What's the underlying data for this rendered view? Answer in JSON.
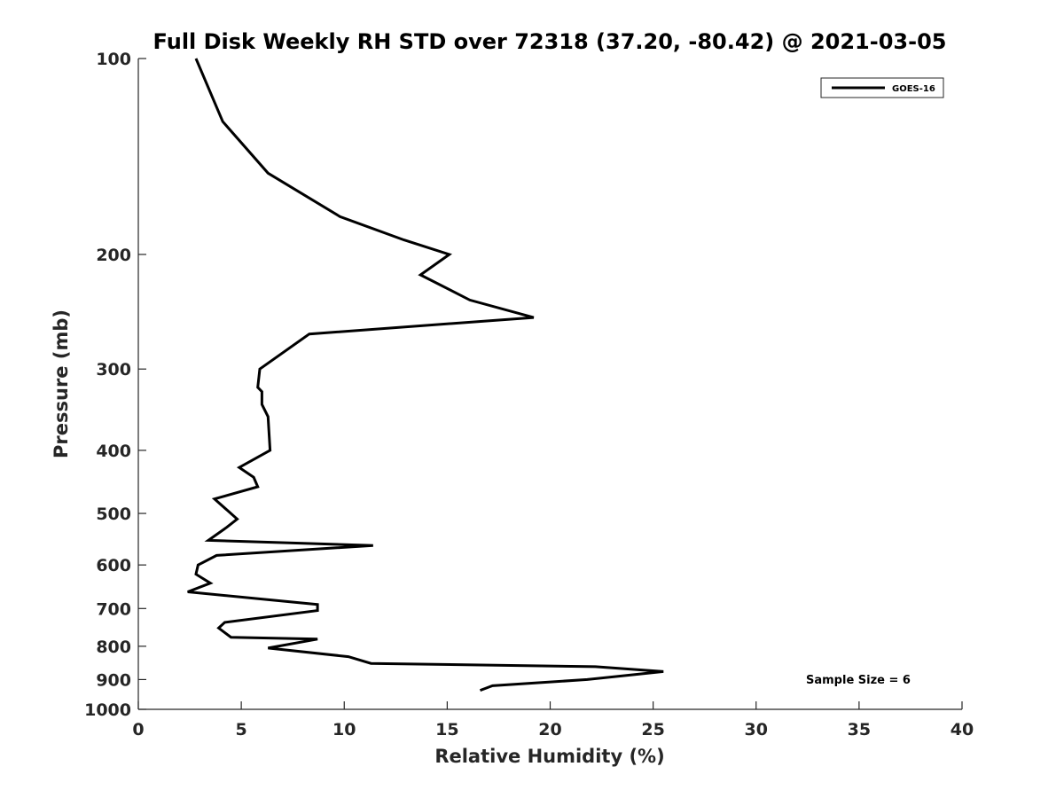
{
  "chart_data": {
    "type": "line",
    "title": "Full Disk Weekly RH STD over 72318 (37.20, -80.42) @ 2021-03-05",
    "xlabel": "Relative Humidity (%)",
    "ylabel": "Pressure (mb)",
    "xlim": [
      0,
      40
    ],
    "ylim": [
      100,
      1000
    ],
    "y_scale": "log",
    "y_reversed": true,
    "x_ticks": [
      0,
      5,
      10,
      15,
      20,
      25,
      30,
      35,
      40
    ],
    "y_ticks": [
      100,
      200,
      300,
      400,
      500,
      600,
      700,
      800,
      900,
      1000
    ],
    "grid": false,
    "legend_position": "top-right",
    "annotation": "Sample Size = 6",
    "series": [
      {
        "name": "GOES-16",
        "color": "#000000",
        "points": [
          [
            2.8,
            100
          ],
          [
            4.1,
            125
          ],
          [
            6.3,
            150
          ],
          [
            9.8,
            175
          ],
          [
            12.9,
            190
          ],
          [
            15.1,
            200
          ],
          [
            13.7,
            215
          ],
          [
            16.1,
            235
          ],
          [
            19.2,
            250
          ],
          [
            8.3,
            265
          ],
          [
            5.9,
            300
          ],
          [
            5.8,
            320
          ],
          [
            6.0,
            325
          ],
          [
            6.0,
            340
          ],
          [
            6.3,
            355
          ],
          [
            6.4,
            400
          ],
          [
            4.9,
            425
          ],
          [
            5.6,
            440
          ],
          [
            5.8,
            455
          ],
          [
            3.7,
            475
          ],
          [
            4.8,
            510
          ],
          [
            4.3,
            525
          ],
          [
            3.4,
            550
          ],
          [
            11.4,
            560
          ],
          [
            3.8,
            580
          ],
          [
            2.9,
            600
          ],
          [
            2.8,
            620
          ],
          [
            3.5,
            640
          ],
          [
            2.4,
            660
          ],
          [
            8.7,
            690
          ],
          [
            8.7,
            705
          ],
          [
            4.2,
            735
          ],
          [
            3.9,
            750
          ],
          [
            4.5,
            775
          ],
          [
            8.7,
            780
          ],
          [
            6.3,
            805
          ],
          [
            10.2,
            830
          ],
          [
            11.3,
            850
          ],
          [
            22.2,
            860
          ],
          [
            25.5,
            875
          ],
          [
            21.8,
            900
          ],
          [
            17.2,
            920
          ],
          [
            16.6,
            935
          ]
        ]
      }
    ]
  }
}
